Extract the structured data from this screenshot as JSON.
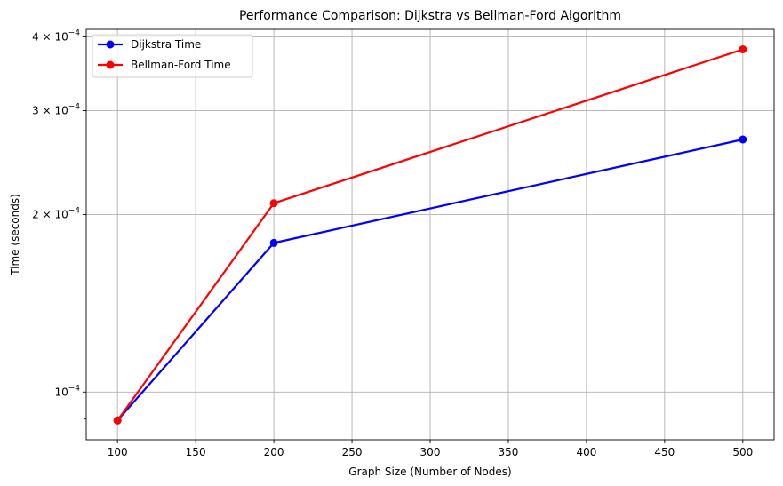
{
  "chart_data": {
    "type": "line",
    "title": "Performance Comparison: Dijkstra vs Bellman-Ford Algorithm",
    "xlabel": "Graph Size (Number of Nodes)",
    "ylabel": "Time (seconds)",
    "yscale": "log",
    "grid": true,
    "legend_position": "top-left",
    "x": [
      100,
      200,
      500
    ],
    "x_ticks": [
      100,
      150,
      200,
      250,
      300,
      350,
      400,
      450,
      500
    ],
    "xlim": [
      80,
      520
    ],
    "ylim": [
      8.3e-05,
      0.000412
    ],
    "y_ticks": [
      {
        "value": 0.0001,
        "mantissa": "",
        "exponent": "−4"
      },
      {
        "value": 0.0002,
        "mantissa": "2",
        "exponent": "−4"
      },
      {
        "value": 0.0003,
        "mantissa": "3",
        "exponent": "−4"
      },
      {
        "value": 0.0004,
        "mantissa": "4",
        "exponent": "−4"
      }
    ],
    "y_minor_ticks": [
      9e-05
    ],
    "series": [
      {
        "name": "Dijkstra Time",
        "color": "#0000ff",
        "values": [
          8.95e-05,
          0.000179,
          0.000268
        ]
      },
      {
        "name": "Bellman-Ford Time",
        "color": "#ff0000",
        "values": [
          8.95e-05,
          0.000209,
          0.000381
        ]
      }
    ]
  }
}
